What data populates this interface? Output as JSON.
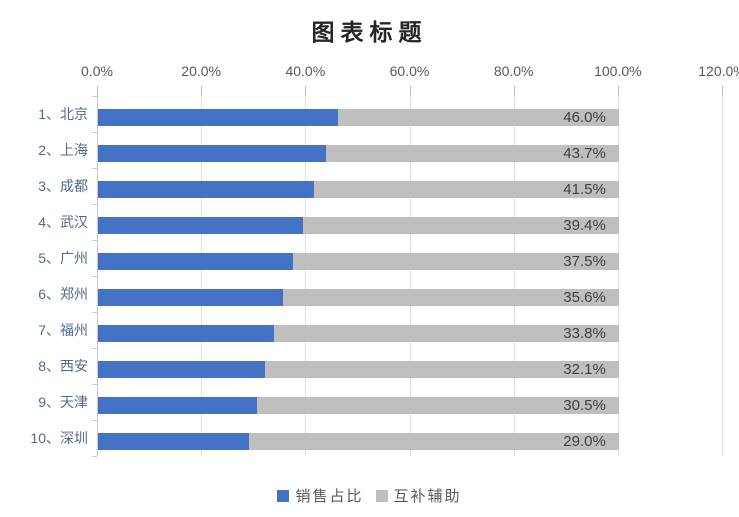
{
  "title": "图表标题",
  "chart_data": {
    "type": "bar",
    "orientation": "horizontal",
    "stacked": true,
    "title": "图表标题",
    "categories": [
      "1、北京",
      "2、上海",
      "3、成都",
      "4、武汉",
      "5、广州",
      "6、郑州",
      "7、福州",
      "8、西安",
      "9、天津",
      "10、深圳"
    ],
    "series": [
      {
        "name": "销售占比",
        "color": "#4472C4",
        "values": [
          46.0,
          43.7,
          41.5,
          39.4,
          37.5,
          35.6,
          33.8,
          32.1,
          30.5,
          29.0
        ]
      },
      {
        "name": "互补辅助",
        "color": "#BFBFBF",
        "values": [
          54.0,
          56.3,
          58.5,
          60.6,
          62.5,
          64.4,
          66.2,
          67.9,
          69.5,
          71.0
        ]
      }
    ],
    "data_labels": [
      "46.0%",
      "43.7%",
      "41.5%",
      "39.4%",
      "37.5%",
      "35.6%",
      "33.8%",
      "32.1%",
      "30.5%",
      "29.0%"
    ],
    "x_axis": {
      "position": "top",
      "min": 0,
      "max": 120,
      "tick_interval": 20,
      "ticks": [
        "0.0%",
        "20.0%",
        "40.0%",
        "60.0%",
        "80.0%",
        "100.0%",
        "120.0%"
      ]
    },
    "gridlines": true,
    "legend": {
      "position": "bottom",
      "entries": [
        {
          "label": "销售占比",
          "color": "#4472C4"
        },
        {
          "label": "互补辅助",
          "color": "#BFBFBF"
        }
      ]
    }
  },
  "colors": {
    "bar_main": "#4472C4",
    "bar_aux": "#BFBFBF",
    "title_text": "#262626",
    "axis_text": "#595959",
    "category_text": "#51698F",
    "data_label_text": "#404040",
    "gridline": "#E0E0E0"
  }
}
